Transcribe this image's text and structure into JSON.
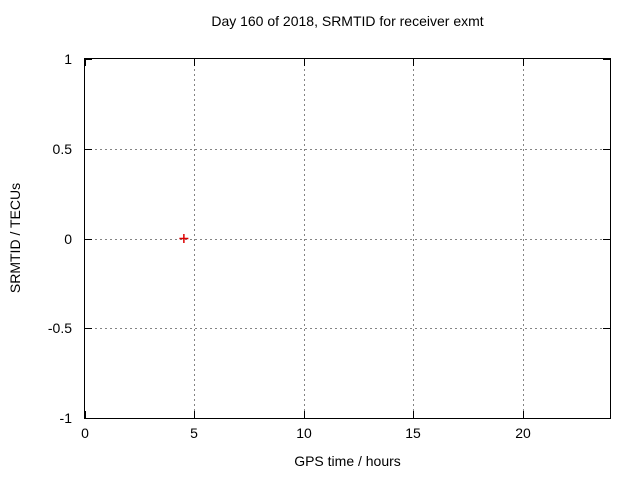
{
  "chart_data": {
    "type": "scatter",
    "title": "Day 160 of 2018, SRMTID for receiver exmt",
    "xlabel": "GPS time / hours",
    "ylabel": "SRMTID / TECUs",
    "xlim": [
      0,
      24
    ],
    "ylim": [
      -1,
      1
    ],
    "x_ticks": [
      0,
      5,
      10,
      15,
      20
    ],
    "x_tick_labels": [
      "0",
      "5",
      "10",
      "15",
      "20"
    ],
    "y_ticks": [
      -1,
      -0.5,
      0,
      0.5,
      1
    ],
    "y_tick_labels": [
      "-1",
      "-0.5",
      "0",
      "0.5",
      "1"
    ],
    "grid": true,
    "legend": "none",
    "colors": {
      "background": "#ffffff",
      "border": "#000000",
      "grid": "#848484",
      "marker": "#dd0000"
    },
    "series": [
      {
        "name": "SRMTID",
        "type": "scatter",
        "marker": "plus",
        "color": "#dd0000",
        "points": [
          [
            4.52,
            0.0
          ]
        ]
      }
    ]
  }
}
